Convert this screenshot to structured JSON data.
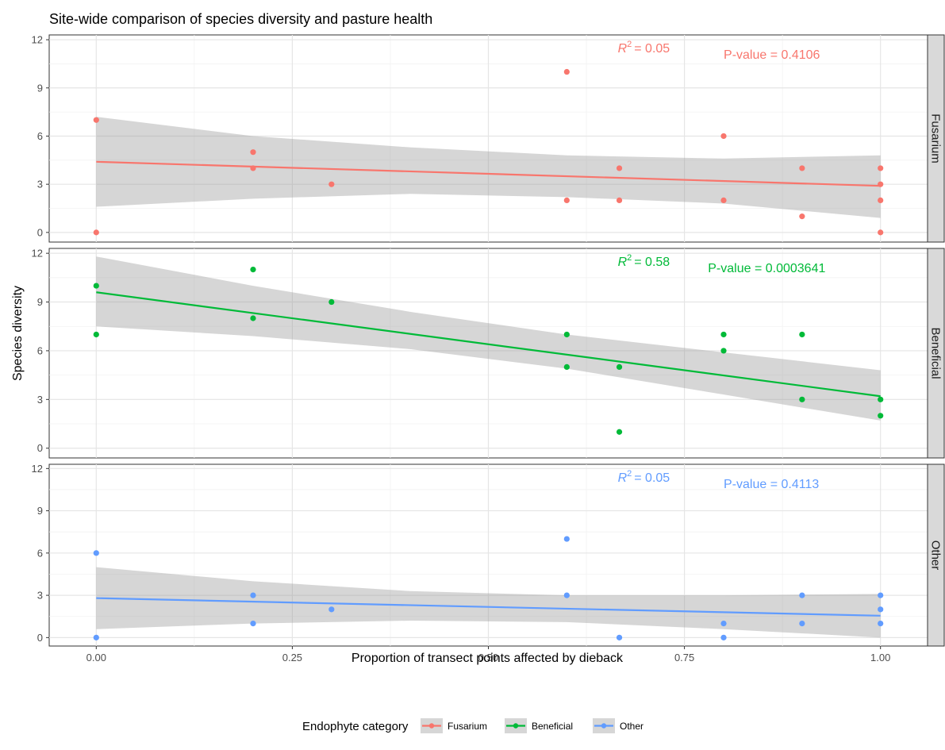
{
  "chart_data": {
    "type": "scatter",
    "title": "Site-wide comparison of species diversity and pasture health",
    "xlabel": "Proportion of transect points affected by dieback",
    "ylabel": "Species diversity",
    "xlim": [
      -0.06,
      1.06
    ],
    "ylim": [
      -0.6,
      12.3
    ],
    "x_ticks": [
      "0.00",
      "0.25",
      "0.50",
      "0.75",
      "1.00"
    ],
    "y_ticks": [
      "0",
      "3",
      "6",
      "9",
      "12"
    ],
    "grid": true,
    "legend": {
      "title": "Endophyte category",
      "position": "bottom",
      "entries": [
        "Fusarium",
        "Beneficial",
        "Other"
      ]
    },
    "panels": [
      {
        "name": "Fusarium",
        "color": "#F8766D",
        "r2_label": "= 0.05",
        "pvalue_label": "P-value = 0.4106",
        "fit": {
          "x": [
            0,
            1
          ],
          "y": [
            4.4,
            2.9
          ]
        },
        "ribbon": {
          "x": [
            0,
            0.2,
            0.4,
            0.6,
            0.8,
            1.0
          ],
          "upper": [
            7.2,
            6.0,
            5.3,
            4.8,
            4.6,
            4.8
          ],
          "lower": [
            1.6,
            2.1,
            2.4,
            2.2,
            1.8,
            0.9
          ]
        },
        "points": [
          [
            0,
            7
          ],
          [
            0,
            0
          ],
          [
            0.2,
            5
          ],
          [
            0.2,
            4
          ],
          [
            0.3,
            3
          ],
          [
            0.6,
            10
          ],
          [
            0.6,
            2
          ],
          [
            0.667,
            4
          ],
          [
            0.667,
            2
          ],
          [
            0.8,
            6
          ],
          [
            0.8,
            2
          ],
          [
            0.9,
            4
          ],
          [
            0.9,
            1
          ],
          [
            1,
            4
          ],
          [
            1,
            3
          ],
          [
            1,
            2
          ],
          [
            1,
            0
          ]
        ]
      },
      {
        "name": "Beneficial",
        "color": "#00BA38",
        "r2_label": "= 0.58",
        "pvalue_label": "P-value = 0.0003641",
        "fit": {
          "x": [
            0,
            1
          ],
          "y": [
            9.6,
            3.2
          ]
        },
        "ribbon": {
          "x": [
            0,
            0.2,
            0.4,
            0.6,
            0.8,
            1.0
          ],
          "upper": [
            11.8,
            10.0,
            8.4,
            7.0,
            5.9,
            4.8
          ],
          "lower": [
            7.5,
            6.9,
            6.1,
            4.9,
            3.3,
            1.7
          ]
        },
        "points": [
          [
            0,
            10
          ],
          [
            0,
            7
          ],
          [
            0.2,
            11
          ],
          [
            0.2,
            8
          ],
          [
            0.3,
            9
          ],
          [
            0.6,
            7
          ],
          [
            0.6,
            5
          ],
          [
            0.667,
            5
          ],
          [
            0.667,
            1
          ],
          [
            0.8,
            7
          ],
          [
            0.8,
            6
          ],
          [
            0.9,
            7
          ],
          [
            0.9,
            3
          ],
          [
            1,
            3
          ],
          [
            1,
            2
          ]
        ]
      },
      {
        "name": "Other",
        "color": "#619CFF",
        "r2_label": "= 0.05",
        "pvalue_label": "P-value = 0.4113",
        "fit": {
          "x": [
            0,
            1
          ],
          "y": [
            2.8,
            1.55
          ]
        },
        "ribbon": {
          "x": [
            0,
            0.2,
            0.4,
            0.6,
            0.8,
            1.0
          ],
          "upper": [
            5.0,
            4.0,
            3.3,
            3.0,
            3.0,
            3.1
          ],
          "lower": [
            0.6,
            1.0,
            1.2,
            1.1,
            0.6,
            0.0
          ]
        },
        "points": [
          [
            0,
            6
          ],
          [
            0,
            0
          ],
          [
            0.2,
            3
          ],
          [
            0.2,
            1
          ],
          [
            0.3,
            2
          ],
          [
            0.6,
            7
          ],
          [
            0.6,
            3
          ],
          [
            0.667,
            0
          ],
          [
            0.8,
            1
          ],
          [
            0.8,
            0
          ],
          [
            0.9,
            3
          ],
          [
            0.9,
            1
          ],
          [
            1,
            3
          ],
          [
            1,
            2
          ],
          [
            1,
            1
          ]
        ]
      }
    ]
  }
}
